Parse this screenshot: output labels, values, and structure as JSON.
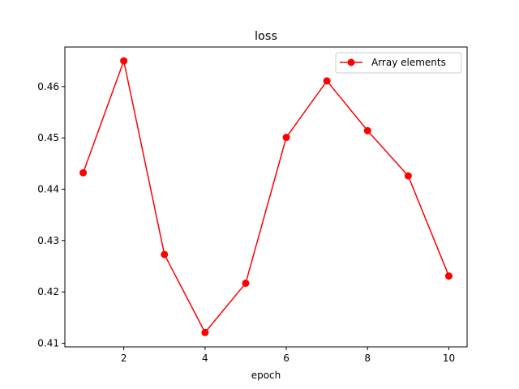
{
  "chart_data": {
    "type": "line",
    "title": "loss",
    "xlabel": "epoch",
    "ylabel": "",
    "xlim": [
      0.55,
      10.45
    ],
    "ylim": [
      0.4093,
      0.4677
    ],
    "xticks": [
      2,
      4,
      6,
      8,
      10
    ],
    "yticks": [
      0.41,
      0.42,
      0.43,
      0.44,
      0.45,
      0.46
    ],
    "grid": false,
    "legend_position": "upper right",
    "series": [
      {
        "name": "Array elements",
        "color": "#ff0000",
        "marker": "circle",
        "x": [
          1,
          2,
          3,
          4,
          5,
          6,
          7,
          8,
          9,
          10
        ],
        "y": [
          0.4432,
          0.465,
          0.4273,
          0.4121,
          0.4217,
          0.4501,
          0.4611,
          0.4514,
          0.4426,
          0.4231
        ]
      }
    ]
  }
}
